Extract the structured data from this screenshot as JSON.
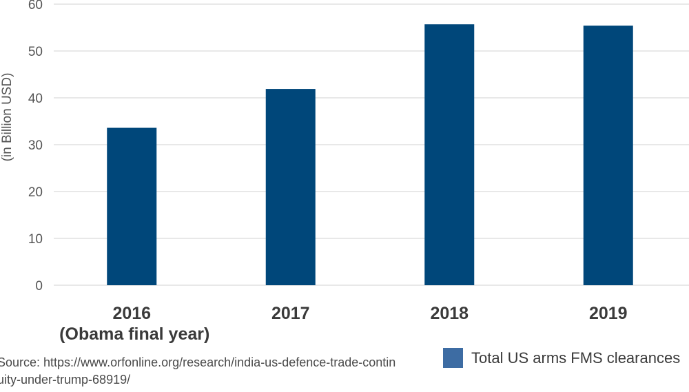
{
  "chart_data": {
    "type": "bar",
    "title": "",
    "xlabel": "",
    "ylabel": "(in Billion USD)",
    "ylim": [
      0,
      60
    ],
    "yticks": [
      0,
      10,
      20,
      30,
      40,
      50,
      60
    ],
    "grid": true,
    "legend_position": "bottom-right",
    "categories": [
      {
        "label": "2016",
        "sublabel": "(Obama final year)"
      },
      {
        "label": "2017",
        "sublabel": ""
      },
      {
        "label": "2018",
        "sublabel": ""
      },
      {
        "label": "2019",
        "sublabel": ""
      }
    ],
    "series": [
      {
        "name": "Total US arms FMS clearances",
        "color": "#00477a",
        "values": [
          33.6,
          41.9,
          55.7,
          55.4
        ]
      }
    ]
  },
  "legend": {
    "swatch_color": "#3d6ca3",
    "label": "Total US arms FMS clearances"
  },
  "source_note": "Source: https://www.orfonline.org/research/india-us-defence-trade-continuity-under-trump-68919/"
}
